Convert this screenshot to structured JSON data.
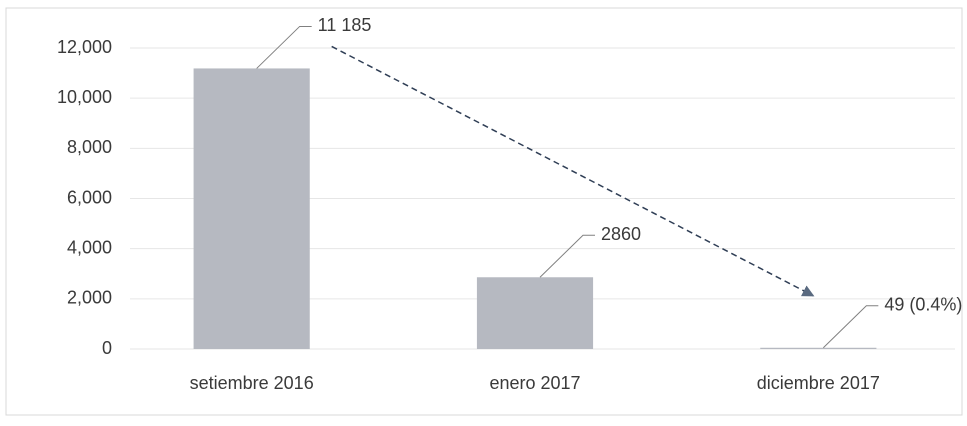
{
  "chart_data": {
    "type": "bar",
    "categories": [
      "setiembre 2016",
      "enero 2017",
      "diciembre 2017"
    ],
    "values": [
      11185,
      2860,
      49
    ],
    "value_labels": [
      "11 185",
      "2860",
      "49 (0.4%)"
    ],
    "color": "#b6b9c1",
    "ylim": [
      0,
      12000
    ],
    "yticks": [
      0,
      {
        "value": 2000,
        "label": "2,000"
      },
      {
        "value": 4000,
        "label": "4,000"
      },
      {
        "value": 6000,
        "label": "6,000"
      },
      {
        "value": 8000,
        "label": "8,000"
      },
      {
        "value": 10000,
        "label": "10,000"
      },
      {
        "value": 12000,
        "label": "12,000"
      }
    ],
    "grid": true
  }
}
